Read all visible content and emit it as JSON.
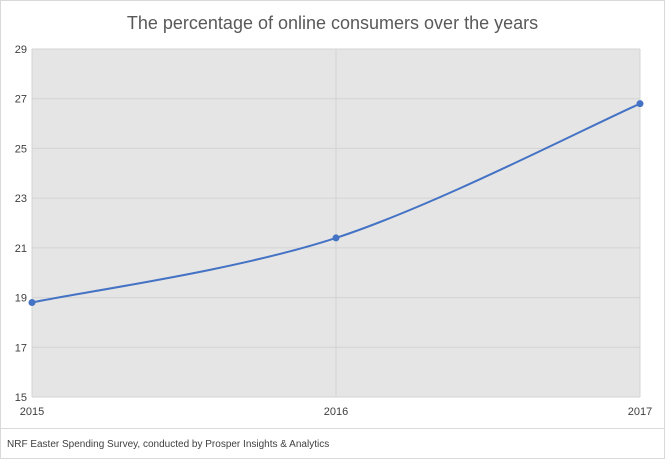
{
  "chart_data": {
    "type": "line",
    "title": "The percentage of online consumers over the years",
    "x": [
      "2015",
      "2016",
      "2017"
    ],
    "series": [
      {
        "values": [
          18.8,
          21.4,
          26.8
        ],
        "color": "#4472c4"
      }
    ],
    "ylim": [
      15,
      29
    ],
    "yticks": [
      15,
      17,
      19,
      21,
      23,
      25,
      27,
      29
    ],
    "xlabel": "",
    "ylabel": "",
    "smooth": true,
    "grid": true,
    "plot_background": "#e5e5e5",
    "legend": "none"
  },
  "footer": {
    "source": "NRF Easter Spending Survey, conducted by Prosper Insights & Analytics"
  }
}
